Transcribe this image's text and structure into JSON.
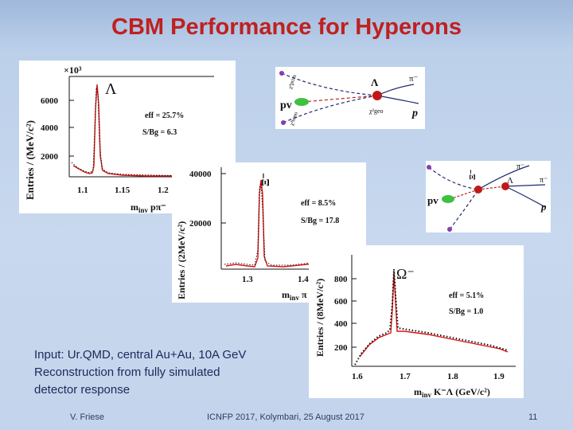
{
  "slide": {
    "title": "CBM Performance for Hyperons",
    "note_lines": [
      "Input: Ur.QMD, central Au+Au, 10A GeV",
      "Reconstruction from fully simulated",
      "detector response"
    ],
    "footer_author": "V. Friese",
    "footer_event": "ICNFP 2017, Kolymbari, 25 August 2017",
    "page_number": "11"
  },
  "colors": {
    "title": "#c02020",
    "fit_line": "#dd1111",
    "data_points": "#111111"
  },
  "plots": {
    "lambda": {
      "exponent": "×10³",
      "particle": "Λ",
      "eff": "eff = 25.7%",
      "sbg": "S/Bg = 6.3",
      "ylabel": "Entries / (MeV/c²)",
      "xlabel": "m",
      "xlabel_sub": "inv",
      "xlabel_tail": "pπ⁻",
      "yticks": [
        "6000",
        "4000",
        "2000"
      ],
      "xticks": [
        "1.1",
        "1.15",
        "1.2"
      ]
    },
    "xi": {
      "particle": "Ξ⁻",
      "eff": "eff = 8.5%",
      "sbg": "S/Bg = 17.8",
      "ylabel": "Entries / (2MeV/c²)",
      "xlabel": "m",
      "xlabel_sub": "inv",
      "xlabel_tail": "π",
      "yticks": [
        "40000",
        "20000"
      ],
      "xticks": [
        "1.3",
        "1.4"
      ]
    },
    "omega": {
      "particle": "Ω⁻",
      "eff": "eff = 5.1%",
      "sbg": "S/Bg = 1.0",
      "ylabel": "Entries / (8MeV/c²)",
      "xlabel": "m",
      "xlabel_sub": "inv",
      "xlabel_tail": "K⁻Λ (GeV/c²)",
      "yticks": [
        "800",
        "600",
        "400",
        "200"
      ],
      "xticks": [
        "1.6",
        "1.7",
        "1.8",
        "1.9"
      ]
    }
  },
  "diagrams": {
    "lambda_decay": {
      "pv": "pv",
      "particle": "Λ",
      "pion": "π⁻",
      "proton": "p",
      "chi_prim": "χ²prim",
      "chi_geo": "χ²geo",
      "chi_topo": "χ²topo"
    },
    "xi_decay": {
      "pv": "pv",
      "xi": "Ξ⁻",
      "lambda": "Λ",
      "pion1": "π⁻",
      "pion2": "π⁻",
      "proton": "p"
    }
  }
}
